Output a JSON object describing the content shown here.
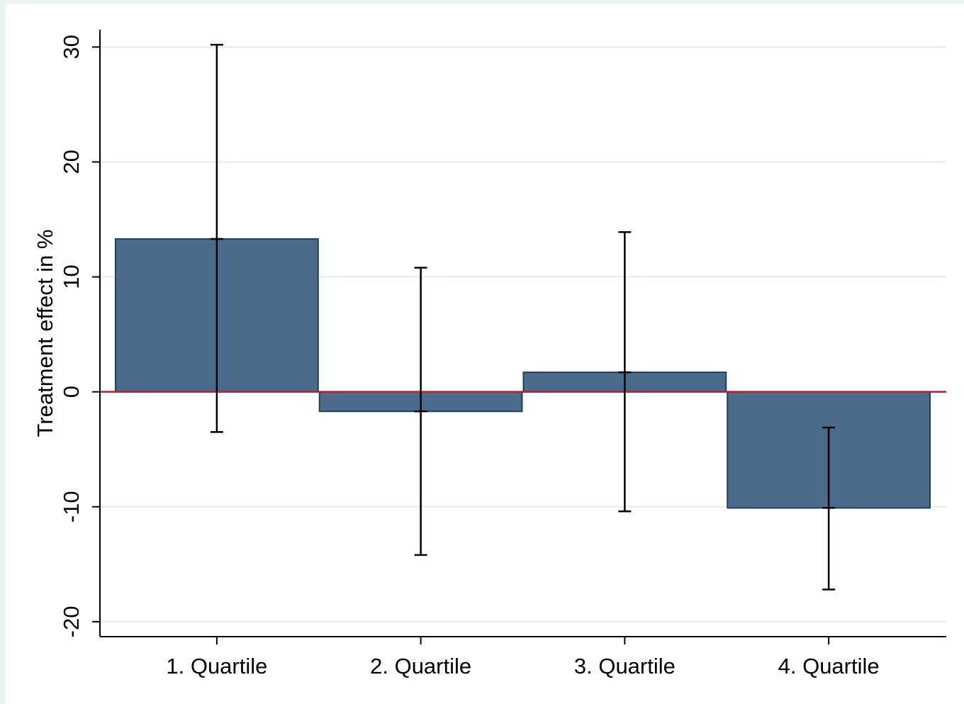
{
  "chart_data": {
    "type": "bar",
    "title": "",
    "xlabel": "",
    "ylabel": "Treatment effect in %",
    "categories": [
      "1. Quartile",
      "2. Quartile",
      "3. Quartile",
      "4. Quartile"
    ],
    "series": [
      {
        "values": [
          13.3,
          -1.7,
          1.7,
          -10.1
        ],
        "ci_lower": [
          -3.5,
          -14.2,
          -10.4,
          -17.2
        ],
        "ci_upper": [
          30.2,
          10.8,
          13.9,
          -3.1
        ]
      }
    ],
    "ylim": [
      -21.3,
      31.5
    ],
    "yticks": [
      -20,
      -10,
      0,
      10,
      20,
      30
    ],
    "ytick_labels": [
      "-20",
      "-10",
      "0",
      "10",
      "20",
      "30"
    ],
    "grid": true,
    "reference_line": 0,
    "colors": {
      "bar_fill": "#4a6b8c",
      "bar_edge": "#1f3f5c",
      "grid": "#e6eeef",
      "reference_line": "#b22234",
      "error_bar": "#000000",
      "background": "#eaf2f3"
    }
  }
}
